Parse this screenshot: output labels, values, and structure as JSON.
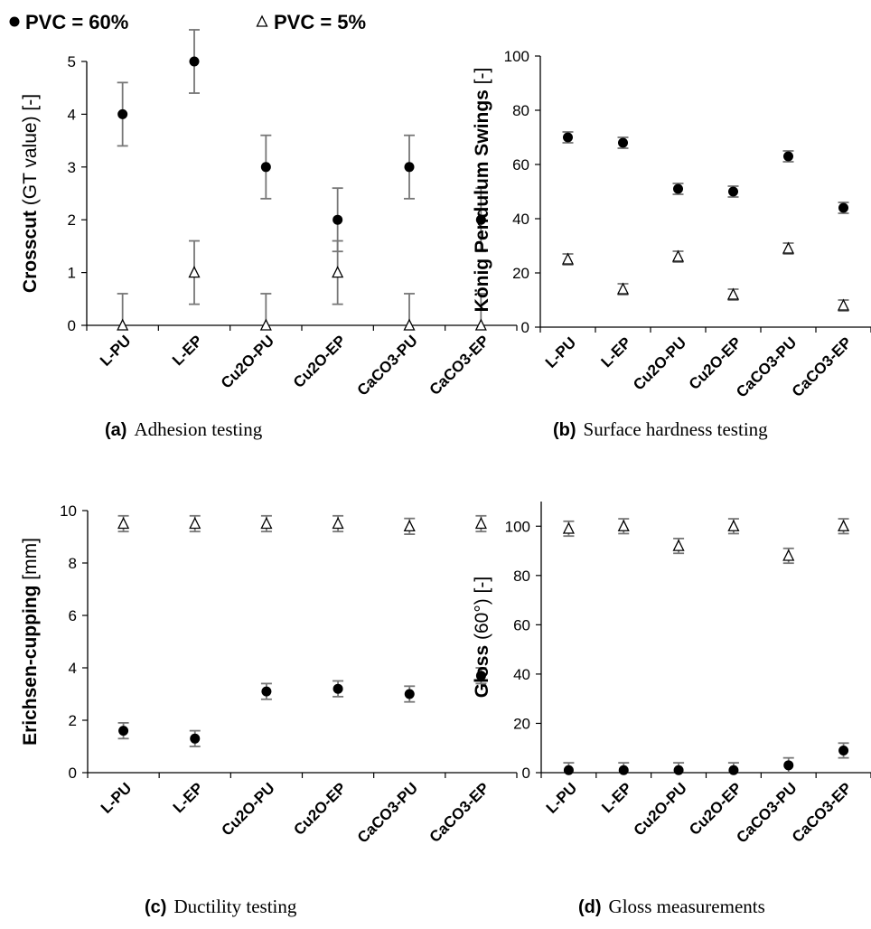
{
  "legend": {
    "items": [
      {
        "symbol": "filled-circle",
        "label": "PVC = 60%"
      },
      {
        "symbol": "open-triangle",
        "label": "PVC = 5%"
      }
    ]
  },
  "chart_data": [
    {
      "type": "scatter",
      "caption_letter": "(a)",
      "caption_text": "Adhesion testing",
      "ylabel_bold": "Crosscut",
      "ylabel_normal": " (GT value) [-]",
      "categories": [
        "L-PU",
        "L-EP",
        "Cu2O-PU",
        "Cu2O-EP",
        "CaCO3-PU",
        "CaCO3-EP"
      ],
      "ylim": [
        0,
        5
      ],
      "yticks": [
        0,
        1,
        2,
        3,
        4,
        5
      ],
      "series": [
        {
          "name": "PVC = 60%",
          "marker": "circle",
          "values": [
            4,
            5,
            3,
            2,
            3,
            2
          ],
          "errors": [
            0.6,
            0.6,
            0.6,
            0.6,
            0.6,
            0.6
          ]
        },
        {
          "name": "PVC = 5%",
          "marker": "triangle",
          "values": [
            0,
            1,
            0,
            1,
            0,
            0
          ],
          "errors": [
            0.6,
            0.6,
            0.6,
            0.6,
            0.6,
            0.6
          ]
        }
      ]
    },
    {
      "type": "scatter",
      "caption_letter": "(b)",
      "caption_text": "Surface hardness testing",
      "ylabel_bold": "König Pendulum Swings",
      "ylabel_normal": " [-]",
      "categories": [
        "L-PU",
        "L-EP",
        "Cu2O-PU",
        "Cu2O-EP",
        "CaCO3-PU",
        "CaCO3-EP"
      ],
      "ylim": [
        0,
        100
      ],
      "yticks": [
        0,
        20,
        40,
        60,
        80,
        100
      ],
      "series": [
        {
          "name": "PVC = 60%",
          "marker": "circle",
          "values": [
            70,
            68,
            51,
            50,
            63,
            44
          ],
          "errors": [
            2,
            2,
            2,
            2,
            2,
            2
          ]
        },
        {
          "name": "PVC = 5%",
          "marker": "triangle",
          "values": [
            25,
            14,
            26,
            12,
            29,
            8
          ],
          "errors": [
            2,
            2,
            2,
            2,
            2,
            2
          ]
        }
      ]
    },
    {
      "type": "scatter",
      "caption_letter": "(c)",
      "caption_text": "Ductility testing",
      "ylabel_bold": "Erichsen-cupping",
      "ylabel_normal": " [mm]",
      "categories": [
        "L-PU",
        "L-EP",
        "Cu2O-PU",
        "Cu2O-EP",
        "CaCO3-PU",
        "CaCO3-EP"
      ],
      "ylim": [
        0,
        10
      ],
      "yticks": [
        0,
        2,
        4,
        6,
        8,
        10
      ],
      "series": [
        {
          "name": "PVC = 60%",
          "marker": "circle",
          "values": [
            1.6,
            1.3,
            3.1,
            3.2,
            3.0,
            3.7
          ],
          "errors": [
            0.3,
            0.3,
            0.3,
            0.3,
            0.3,
            0.3
          ]
        },
        {
          "name": "PVC = 5%",
          "marker": "triangle",
          "values": [
            9.5,
            9.5,
            9.5,
            9.5,
            9.4,
            9.5
          ],
          "errors": [
            0.3,
            0.3,
            0.3,
            0.3,
            0.3,
            0.3
          ]
        }
      ]
    },
    {
      "type": "scatter",
      "caption_letter": "(d)",
      "caption_text": "Gloss measurements",
      "ylabel_bold": "Gloss",
      "ylabel_normal": " (60°) [-]",
      "categories": [
        "L-PU",
        "L-EP",
        "Cu2O-PU",
        "Cu2O-EP",
        "CaCO3-PU",
        "CaCO3-EP"
      ],
      "ylim": [
        0,
        110
      ],
      "yticks": [
        0,
        20,
        40,
        60,
        80,
        100
      ],
      "series": [
        {
          "name": "PVC = 60%",
          "marker": "circle",
          "values": [
            1,
            1,
            1,
            1,
            3,
            9
          ],
          "errors": [
            3,
            3,
            3,
            3,
            3,
            3
          ]
        },
        {
          "name": "PVC = 5%",
          "marker": "triangle",
          "values": [
            99,
            100,
            92,
            100,
            88,
            100
          ],
          "errors": [
            3,
            3,
            3,
            3,
            3,
            3
          ]
        }
      ]
    }
  ]
}
